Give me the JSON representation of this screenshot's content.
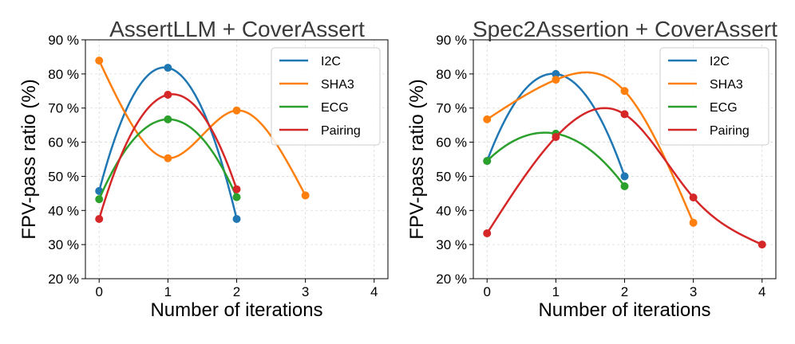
{
  "chart_data": [
    {
      "type": "line",
      "title": "AssertLLM + CoverAssert",
      "xlabel": "Number of iterations",
      "ylabel": "FPV-pass ratio (%)",
      "xlim": [
        -0.2,
        4.2
      ],
      "ylim": [
        20,
        90
      ],
      "xticks": [
        0,
        1,
        2,
        3,
        4
      ],
      "yticks": [
        20,
        30,
        40,
        50,
        60,
        70,
        80,
        90
      ],
      "ytick_labels": [
        "20 %",
        "30 %",
        "40 %",
        "50 %",
        "60 %",
        "70 %",
        "80 %",
        "90 %"
      ],
      "grid": true,
      "legend_position": "top-right",
      "series": [
        {
          "name": "I2C",
          "color": "#1f77b4",
          "x": [
            0,
            1,
            2
          ],
          "values": [
            45.7,
            81.8,
            37.5
          ]
        },
        {
          "name": "SHA3",
          "color": "#ff7f0e",
          "x": [
            0,
            1,
            2,
            3
          ],
          "values": [
            83.9,
            55.3,
            69.3,
            44.4
          ]
        },
        {
          "name": "ECG",
          "color": "#2ca02c",
          "x": [
            0,
            1,
            2
          ],
          "values": [
            43.3,
            66.7,
            43.9
          ]
        },
        {
          "name": "Pairing",
          "color": "#d62728",
          "x": [
            0,
            1,
            2
          ],
          "values": [
            37.5,
            73.9,
            46.2
          ]
        }
      ]
    },
    {
      "type": "line",
      "title": "Spec2Assertion + CoverAssert",
      "xlabel": "Number of iterations",
      "ylabel": "FPV-pass ratio (%)",
      "xlim": [
        -0.2,
        4.2
      ],
      "ylim": [
        20,
        90
      ],
      "xticks": [
        0,
        1,
        2,
        3,
        4
      ],
      "yticks": [
        20,
        30,
        40,
        50,
        60,
        70,
        80,
        90
      ],
      "ytick_labels": [
        "20 %",
        "30 %",
        "40 %",
        "50 %",
        "60 %",
        "70 %",
        "80 %",
        "90 %"
      ],
      "grid": true,
      "legend_position": "top-right",
      "series": [
        {
          "name": "I2C",
          "color": "#1f77b4",
          "x": [
            0,
            1,
            2
          ],
          "values": [
            54.5,
            80.0,
            50.0
          ]
        },
        {
          "name": "SHA3",
          "color": "#ff7f0e",
          "x": [
            0,
            1,
            2,
            3
          ],
          "values": [
            66.7,
            78.3,
            75.0,
            36.4
          ]
        },
        {
          "name": "ECG",
          "color": "#2ca02c",
          "x": [
            0,
            1,
            2
          ],
          "values": [
            54.5,
            62.5,
            47.1
          ]
        },
        {
          "name": "Pairing",
          "color": "#d62728",
          "x": [
            0,
            1,
            2,
            3,
            4
          ],
          "values": [
            33.3,
            61.5,
            68.2,
            43.8,
            30.0
          ]
        }
      ]
    }
  ]
}
